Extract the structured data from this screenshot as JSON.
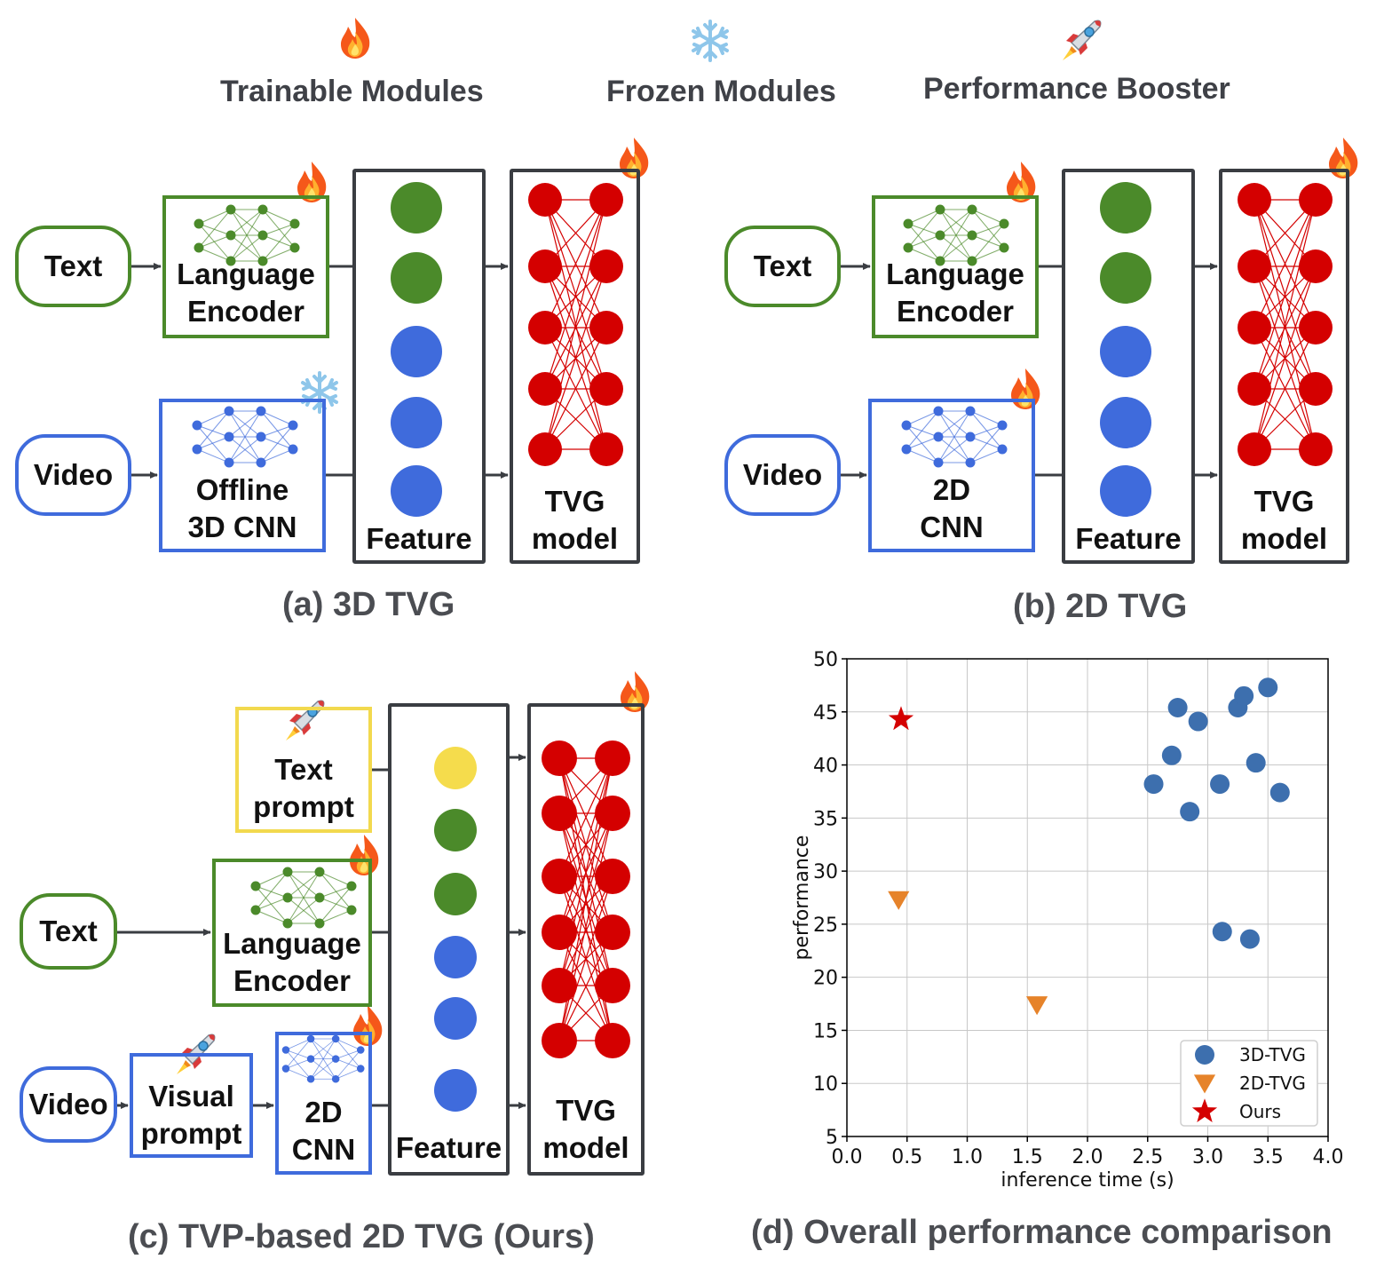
{
  "legend": {
    "trainable": "Trainable Modules",
    "frozen": "Frozen Modules",
    "booster": "Performance Booster"
  },
  "panel_a": {
    "caption": "(a) 3D TVG",
    "text_input": "Text",
    "video_input": "Video",
    "language_encoder": [
      "Language",
      "Encoder"
    ],
    "video_encoder": [
      "Offline",
      "3D CNN"
    ],
    "feature": "Feature",
    "tvg_model": [
      "TVG",
      "model"
    ]
  },
  "panel_b": {
    "caption": "(b) 2D TVG",
    "text_input": "Text",
    "video_input": "Video",
    "language_encoder": [
      "Language",
      "Encoder"
    ],
    "video_encoder": [
      "2D",
      "CNN"
    ],
    "feature": "Feature",
    "tvg_model": [
      "TVG",
      "model"
    ]
  },
  "panel_c": {
    "caption": "(c) TVP-based 2D TVG (Ours)",
    "text_prompt": [
      "Text",
      "prompt"
    ],
    "text_input": "Text",
    "video_input": "Video",
    "language_encoder": [
      "Language",
      "Encoder"
    ],
    "visual_prompt": [
      "Visual",
      "prompt"
    ],
    "video_encoder": [
      "2D",
      "CNN"
    ],
    "feature": "Feature",
    "tvg_model": [
      "TVG",
      "model"
    ]
  },
  "colors": {
    "green": "#4b8a2a",
    "blue": "#3f6bdc",
    "red": "#d40000",
    "yellow": "#f5dc4c",
    "dark": "#3a3d42"
  },
  "icons": {
    "trainable": "fire-icon",
    "frozen": "snowflake-icon",
    "booster": "rocket-icon"
  },
  "panel_d": {
    "caption": "(d) Overall performance comparison"
  },
  "chart_data": {
    "type": "scatter",
    "title": "",
    "xlabel": "inference time (s)",
    "ylabel": "performance",
    "xlim": [
      0.0,
      4.0
    ],
    "ylim": [
      5,
      50
    ],
    "xticks": [
      "0.0",
      "0.5",
      "1.0",
      "1.5",
      "2.0",
      "2.5",
      "3.0",
      "3.5",
      "4.0"
    ],
    "yticks": [
      "5",
      "10",
      "15",
      "20",
      "25",
      "30",
      "35",
      "40",
      "45",
      "50"
    ],
    "grid": true,
    "legend_position": "bottom-right",
    "series": [
      {
        "name": "3D-TVG",
        "marker": "circle",
        "color": "#3d6fae",
        "points": [
          [
            2.55,
            38.2
          ],
          [
            2.7,
            40.9
          ],
          [
            2.75,
            45.4
          ],
          [
            2.85,
            35.6
          ],
          [
            2.92,
            44.1
          ],
          [
            3.1,
            38.2
          ],
          [
            3.12,
            24.3
          ],
          [
            3.25,
            45.4
          ],
          [
            3.3,
            46.5
          ],
          [
            3.35,
            23.6
          ],
          [
            3.4,
            40.2
          ],
          [
            3.5,
            47.3
          ],
          [
            3.6,
            37.4
          ]
        ]
      },
      {
        "name": "2D-TVG",
        "marker": "triangle-down",
        "color": "#e6832a",
        "points": [
          [
            0.43,
            27.3
          ],
          [
            1.58,
            17.4
          ]
        ]
      },
      {
        "name": "Ours",
        "marker": "star",
        "color": "#d40000",
        "points": [
          [
            0.45,
            44.3
          ]
        ]
      }
    ]
  }
}
